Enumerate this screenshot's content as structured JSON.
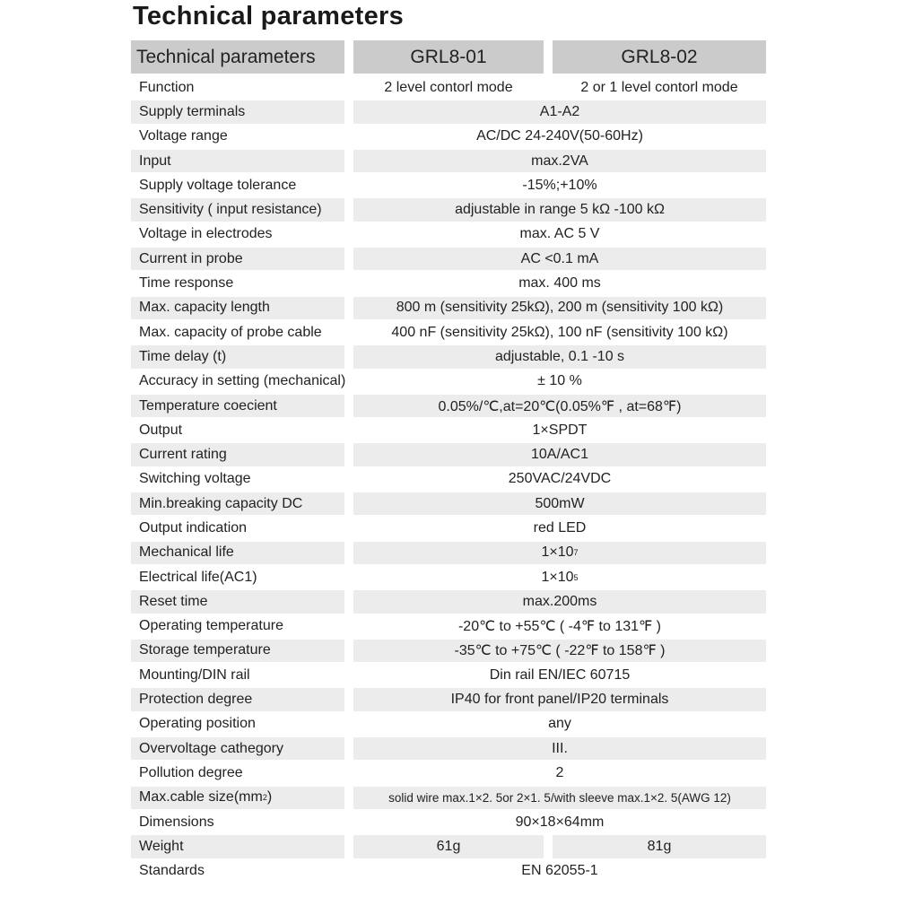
{
  "title": "Technical parameters",
  "header": {
    "param": "Technical parameters",
    "model_a": "GRL8-01",
    "model_b": "GRL8-02"
  },
  "rows": [
    {
      "label": "Function",
      "a": "2 level contorl mode",
      "b": "2 or 1 level contorl mode"
    },
    {
      "label": "Supply terminals",
      "value": "A1-A2"
    },
    {
      "label": "Voltage range",
      "value": "AC/DC 24-240V(50-60Hz)"
    },
    {
      "label": "Input",
      "value": "max.2VA"
    },
    {
      "label": "Supply voltage tolerance",
      "value": "-15%;+10%"
    },
    {
      "label": "Sensitivity ( input resistance)",
      "value": "adjustable in range 5 kΩ -100 kΩ"
    },
    {
      "label": "Voltage in electrodes",
      "value": "max. AC 5 V"
    },
    {
      "label": "Current in probe",
      "value": "AC <0.1 mA"
    },
    {
      "label": "Time response",
      "value": "max. 400 ms"
    },
    {
      "label": "Max. capacity length",
      "value": "800 m (sensitivity 25kΩ), 200 m (sensitivity 100 kΩ)"
    },
    {
      "label": "Max. capacity of probe cable",
      "value": "400 nF (sensitivity 25kΩ), 100 nF (sensitivity 100 kΩ)"
    },
    {
      "label": "Time delay (t)",
      "value": "adjustable, 0.1 -10 s"
    },
    {
      "label": "Accuracy in setting (mechanical)",
      "value": "± 10 %"
    },
    {
      "label": "Temperature coecient",
      "value": "0.05%/℃,at=20℃(0.05%℉ , at=68℉)"
    },
    {
      "label": "Output",
      "value": "1×SPDT"
    },
    {
      "label": "Current rating",
      "value": "10A/AC1"
    },
    {
      "label": "Switching voltage",
      "value": "250VAC/24VDC"
    },
    {
      "label": "Min.breaking capacity DC",
      "value": "500mW"
    },
    {
      "label": "Output indication",
      "value": "red LED"
    },
    {
      "label": "Mechanical life",
      "value": "1×10",
      "value_sup": "7"
    },
    {
      "label": "Electrical life(AC1)",
      "value": "1×10",
      "value_sup": "5"
    },
    {
      "label": "Reset time",
      "value": "max.200ms"
    },
    {
      "label": "Operating temperature",
      "value": "-20℃ to +55℃ ( -4℉ to 131℉ )"
    },
    {
      "label": "Storage temperature",
      "value": "-35℃ to +75℃ ( -22℉ to 158℉ )"
    },
    {
      "label": "Mounting/DIN rail",
      "value": "Din rail EN/IEC 60715"
    },
    {
      "label": "Protection degree",
      "value": "IP40 for front panel/IP20 terminals"
    },
    {
      "label": "Operating position",
      "value": "any"
    },
    {
      "label": "Overvoltage cathegory",
      "value": "III."
    },
    {
      "label": "Pollution degree",
      "value": "2"
    },
    {
      "label": "Max.cable size(mm",
      "label_sup": "2",
      "label_after": ")",
      "value": "solid wire max.1×2. 5or 2×1. 5/with  sleeve max.1×2. 5(AWG 12)",
      "small": true
    },
    {
      "label": "Dimensions",
      "value": "90×18×64mm"
    },
    {
      "label": "Weight",
      "a": "61g",
      "b": "81g"
    },
    {
      "label": "Standards",
      "value": "EN 62055-1"
    }
  ]
}
